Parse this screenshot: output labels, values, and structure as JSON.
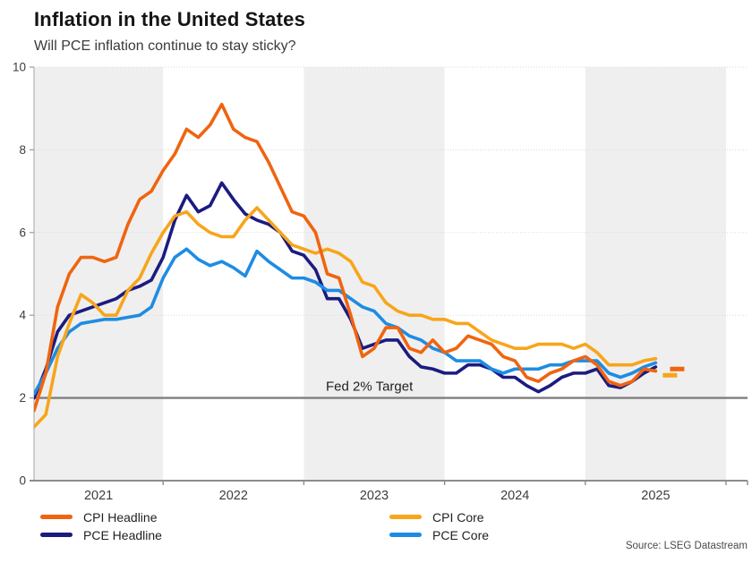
{
  "header": {
    "title": "Inflation in the United States",
    "subtitle": "Will PCE inflation continue to stay sticky?"
  },
  "source": "Source: LSEG Datastream",
  "legend": [
    {
      "label": "CPI Headline",
      "color": "#F0640F"
    },
    {
      "label": "CPI Core",
      "color": "#F8A51B"
    },
    {
      "label": "PCE Headline",
      "color": "#1B1B80"
    },
    {
      "label": "PCE Core",
      "color": "#1E8CE3"
    }
  ],
  "chart_data": {
    "type": "line",
    "title": "Inflation in the United States",
    "subtitle": "Will PCE inflation continue to stay sticky?",
    "ylim": [
      0,
      10
    ],
    "yticks": [
      0,
      2,
      4,
      6,
      8,
      10
    ],
    "grid": "dotted horizontal gridlines at each y tick",
    "x_year_labels": [
      "2021",
      "2022",
      "2023",
      "2024",
      "2025"
    ],
    "year_band_colors": {
      "shaded": "#EFEFEF",
      "plain": "#FFFFFF"
    },
    "axis_color": "#8C8C8C",
    "reference_line": {
      "label": "Fed 2% Target",
      "value": 2,
      "color": "#7F7F7F"
    },
    "x_months": [
      "2021-01",
      "2021-02",
      "2021-03",
      "2021-04",
      "2021-05",
      "2021-06",
      "2021-07",
      "2021-08",
      "2021-09",
      "2021-10",
      "2021-11",
      "2021-12",
      "2022-01",
      "2022-02",
      "2022-03",
      "2022-04",
      "2022-05",
      "2022-06",
      "2022-07",
      "2022-08",
      "2022-09",
      "2022-10",
      "2022-11",
      "2022-12",
      "2023-01",
      "2023-02",
      "2023-03",
      "2023-04",
      "2023-05",
      "2023-06",
      "2023-07",
      "2023-08",
      "2023-09",
      "2023-10",
      "2023-11",
      "2023-12",
      "2024-01",
      "2024-02",
      "2024-03",
      "2024-04",
      "2024-05",
      "2024-06",
      "2024-07",
      "2024-08",
      "2024-09",
      "2024-10",
      "2024-11",
      "2024-12",
      "2025-01",
      "2025-02",
      "2025-03",
      "2025-04",
      "2025-05",
      "2025-06",
      "2025-07"
    ],
    "series": [
      {
        "name": "CPI Headline",
        "color": "#F0640F",
        "end_dash": 2.7,
        "values": [
          1.4,
          1.7,
          2.6,
          4.2,
          5.0,
          5.4,
          5.4,
          5.3,
          5.4,
          6.2,
          6.8,
          7.0,
          7.5,
          7.9,
          8.5,
          8.3,
          8.6,
          9.1,
          8.5,
          8.3,
          8.2,
          7.7,
          7.1,
          6.5,
          6.4,
          6.0,
          5.0,
          4.9,
          4.0,
          3.0,
          3.2,
          3.7,
          3.7,
          3.2,
          3.1,
          3.4,
          3.1,
          3.2,
          3.5,
          3.4,
          3.3,
          3.0,
          2.9,
          2.5,
          2.4,
          2.6,
          2.7,
          2.9,
          3.0,
          2.8,
          2.4,
          2.3,
          2.4,
          2.7,
          2.65
        ]
      },
      {
        "name": "CPI Core",
        "color": "#F8A51B",
        "end_dash": 2.55,
        "values": [
          1.45,
          1.3,
          1.6,
          3.0,
          3.8,
          4.5,
          4.3,
          4.0,
          4.0,
          4.6,
          4.9,
          5.5,
          6.0,
          6.4,
          6.5,
          6.2,
          6.0,
          5.9,
          5.9,
          6.3,
          6.6,
          6.3,
          6.0,
          5.7,
          5.6,
          5.5,
          5.6,
          5.5,
          5.3,
          4.8,
          4.7,
          4.3,
          4.1,
          4.0,
          4.0,
          3.9,
          3.9,
          3.8,
          3.8,
          3.6,
          3.4,
          3.3,
          3.2,
          3.2,
          3.3,
          3.3,
          3.3,
          3.2,
          3.3,
          3.1,
          2.8,
          2.8,
          2.8,
          2.9,
          2.95
        ]
      },
      {
        "name": "PCE Headline",
        "color": "#1B1B80",
        "values": [
          1.85,
          2.0,
          2.7,
          3.6,
          4.0,
          4.1,
          4.2,
          4.3,
          4.4,
          4.6,
          4.7,
          4.85,
          5.4,
          6.3,
          6.9,
          6.5,
          6.65,
          7.2,
          6.8,
          6.45,
          6.3,
          6.2,
          6.0,
          5.55,
          5.45,
          5.1,
          4.4,
          4.4,
          3.9,
          3.2,
          3.3,
          3.4,
          3.4,
          3.0,
          2.75,
          2.7,
          2.6,
          2.6,
          2.8,
          2.8,
          2.7,
          2.5,
          2.5,
          2.3,
          2.15,
          2.3,
          2.5,
          2.6,
          2.6,
          2.7,
          2.3,
          2.25,
          2.4,
          2.6,
          2.75
        ]
      },
      {
        "name": "PCE Core",
        "color": "#1E8CE3",
        "values": [
          1.95,
          2.1,
          2.6,
          3.2,
          3.6,
          3.8,
          3.85,
          3.9,
          3.9,
          3.95,
          4.0,
          4.2,
          4.9,
          5.4,
          5.6,
          5.35,
          5.2,
          5.3,
          5.15,
          4.95,
          5.55,
          5.3,
          5.1,
          4.9,
          4.9,
          4.8,
          4.6,
          4.6,
          4.4,
          4.2,
          4.1,
          3.8,
          3.7,
          3.5,
          3.4,
          3.2,
          3.1,
          2.9,
          2.9,
          2.9,
          2.7,
          2.6,
          2.7,
          2.7,
          2.7,
          2.8,
          2.8,
          2.9,
          2.9,
          2.9,
          2.6,
          2.5,
          2.6,
          2.75,
          2.85
        ]
      }
    ]
  }
}
